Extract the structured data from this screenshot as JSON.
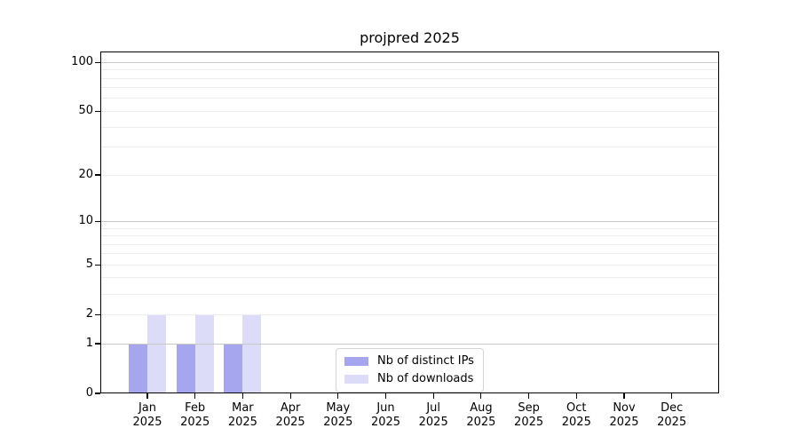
{
  "title": "projpred 2025",
  "chart_data": {
    "type": "bar",
    "title": "projpred 2025",
    "categories": [
      "Jan 2025",
      "Feb 2025",
      "Mar 2025",
      "Apr 2025",
      "May 2025",
      "Jun 2025",
      "Jul 2025",
      "Aug 2025",
      "Sep 2025",
      "Oct 2025",
      "Nov 2025",
      "Dec 2025"
    ],
    "series": [
      {
        "name": "Nb of distinct IPs",
        "color": "#a6a6ee",
        "values": [
          1,
          1,
          1,
          0,
          0,
          0,
          0,
          0,
          0,
          0,
          0,
          0
        ]
      },
      {
        "name": "Nb of downloads",
        "color": "#dcdcf8",
        "values": [
          2,
          2,
          2,
          0,
          0,
          0,
          0,
          0,
          0,
          0,
          0,
          0
        ]
      }
    ],
    "xlabel": "",
    "ylabel": "",
    "yscale": "log1p",
    "ylim": [
      0,
      116
    ],
    "y_tick_labels": [
      "0",
      "1",
      "2",
      "5",
      "10",
      "20",
      "50",
      "100"
    ],
    "y_major_gridlines": [
      1,
      10,
      100
    ],
    "y_minor_gridlines": [
      2,
      3,
      4,
      5,
      6,
      7,
      8,
      9,
      20,
      30,
      40,
      50,
      60,
      70,
      80,
      90
    ],
    "grid": "on",
    "legend_position": "lower center inside plot",
    "colors": {
      "major_grid": "#c8c8c8",
      "minor_grid": "#ededed",
      "axis": "#000000",
      "text": "#000000"
    }
  }
}
